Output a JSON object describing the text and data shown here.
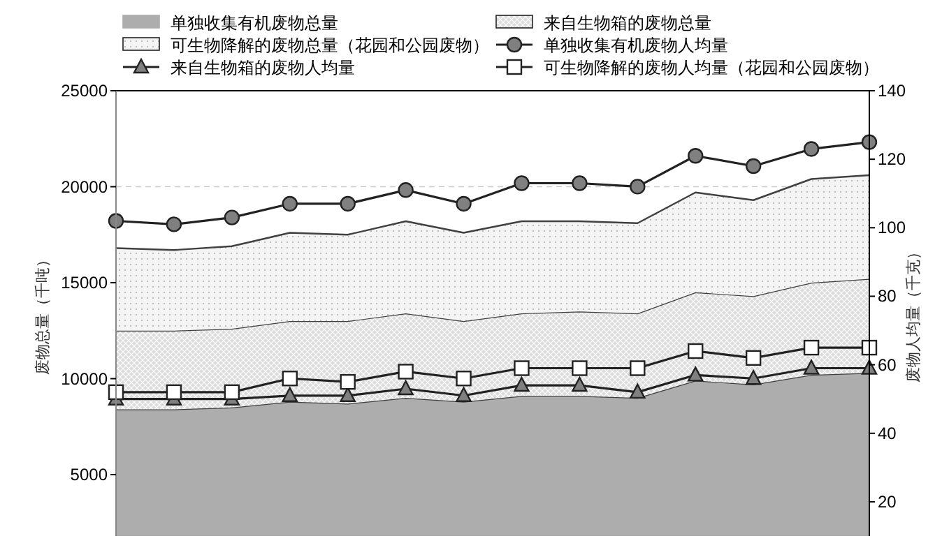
{
  "chart_data": {
    "type": "area",
    "stacked": true,
    "legend": "top",
    "grid": "y",
    "ylabel": "废物总量（千吨）",
    "y2label": "废物人均量（千克）",
    "categories": [
      null,
      null,
      null,
      null,
      null,
      null,
      null,
      null,
      null,
      null,
      null,
      null,
      null,
      null
    ],
    "ylim": [
      1800,
      25000
    ],
    "yticks": [
      5000,
      10000,
      15000,
      20000,
      25000
    ],
    "y2lim": [
      10,
      140
    ],
    "y2ticks": [
      20,
      40,
      60,
      80,
      100,
      120,
      140
    ],
    "series": [
      {
        "name": "单独收集有机废物总量",
        "color": "#adadad",
        "values": [
          8400,
          8400,
          8500,
          8800,
          8700,
          9000,
          8800,
          9100,
          9100,
          9000,
          9900,
          9700,
          10200,
          10300
        ]
      },
      {
        "name": "来自生物箱的废物总量",
        "color": "#dcdcdc",
        "values": [
          4100,
          4100,
          4100,
          4200,
          4300,
          4400,
          4200,
          4300,
          4400,
          4400,
          4600,
          4600,
          4800,
          4900
        ]
      },
      {
        "name": "可生物降解的废物总量（花园和公园废物）",
        "color": "#f4f4f4",
        "values": [
          4300,
          4200,
          4300,
          4600,
          4500,
          4800,
          4600,
          4800,
          4700,
          4700,
          5200,
          5000,
          5400,
          5400
        ]
      },
      {
        "name": "单独收集有机废物人均量",
        "type": "line",
        "axis": "y2",
        "marker": "circle",
        "color": "#808080",
        "values": [
          102,
          101,
          103,
          107,
          107,
          111,
          107,
          113,
          113,
          112,
          121,
          118,
          123,
          125
        ]
      },
      {
        "name": "来自生物箱的废物人均量",
        "type": "line",
        "axis": "y2",
        "marker": "triangle",
        "color": "#808080",
        "values": [
          50,
          50,
          50,
          51,
          51,
          53,
          51,
          54,
          54,
          52,
          57,
          56,
          59,
          59
        ]
      },
      {
        "name": "可生物降解的废物人均量（花园和公园废物）",
        "type": "line",
        "axis": "y2",
        "marker": "square",
        "color": "#ffffff",
        "values": [
          52,
          52,
          52,
          56,
          55,
          58,
          56,
          59,
          59,
          59,
          64,
          62,
          65,
          65
        ]
      }
    ]
  }
}
